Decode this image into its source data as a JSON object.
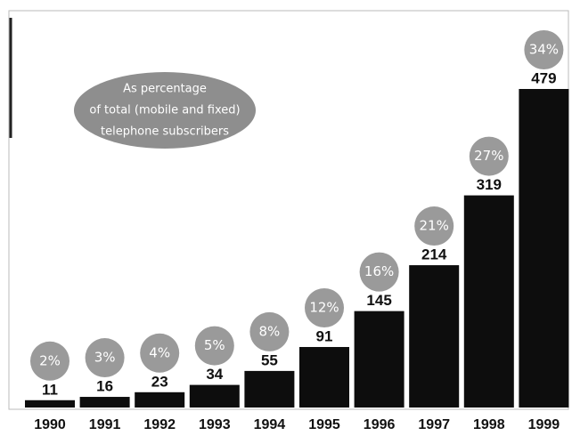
{
  "chart_data": {
    "type": "bar",
    "categories": [
      "1990",
      "1991",
      "1992",
      "1993",
      "1994",
      "1995",
      "1996",
      "1997",
      "1998",
      "1999"
    ],
    "values": [
      11,
      16,
      23,
      34,
      55,
      91,
      145,
      214,
      319,
      479
    ],
    "color": "#0d0d0d",
    "shares": {
      "color": "#9a9a9a",
      "values": [
        2,
        3,
        4,
        5,
        8,
        12,
        16,
        21,
        27,
        34
      ],
      "value_labels": [
        "2%",
        "3%",
        "4%",
        "5%",
        "8%",
        "12%",
        "16%",
        "21%",
        "27%",
        "34%"
      ]
    },
    "annotation": [
      "As percentage",
      "of total (mobile and fixed)",
      "telephone subscribers"
    ]
  }
}
